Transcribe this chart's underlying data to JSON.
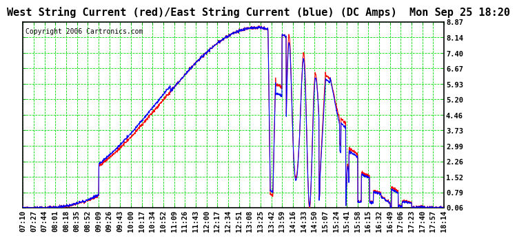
{
  "title": "West String Current (red)/East String Current (blue) (DC Amps)  Mon Sep 25 18:20",
  "copyright": "Copyright 2006 Cartronics.com",
  "yticks": [
    0.06,
    0.79,
    1.52,
    2.26,
    2.99,
    3.73,
    4.46,
    5.2,
    5.93,
    6.67,
    7.4,
    8.14,
    8.87
  ],
  "ymin": 0.06,
  "ymax": 8.87,
  "xtick_labels": [
    "07:10",
    "07:27",
    "07:44",
    "08:01",
    "08:18",
    "08:35",
    "08:52",
    "09:09",
    "09:26",
    "09:43",
    "10:00",
    "10:17",
    "10:34",
    "10:52",
    "11:09",
    "11:26",
    "11:43",
    "12:00",
    "12:17",
    "12:34",
    "12:51",
    "13:08",
    "13:25",
    "13:42",
    "13:59",
    "14:16",
    "14:33",
    "14:50",
    "15:07",
    "15:24",
    "15:41",
    "15:58",
    "16:15",
    "16:32",
    "16:49",
    "17:06",
    "17:23",
    "17:40",
    "17:57",
    "18:14"
  ],
  "bg_color": "#ffffff",
  "plot_bg": "#ffffff",
  "grid_color": "#00dd00",
  "border_color": "#000000",
  "red_color": "#ff0000",
  "blue_color": "#0000ff",
  "title_fontsize": 11,
  "tick_fontsize": 7.5,
  "copyright_fontsize": 7
}
